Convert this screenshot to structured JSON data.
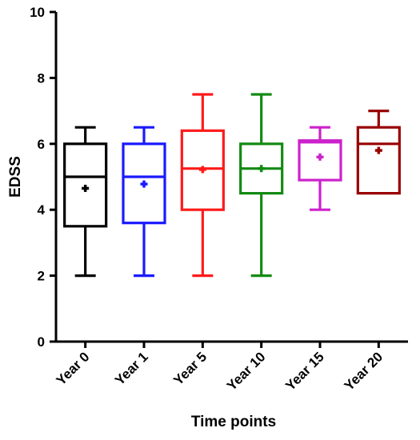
{
  "chart_data": {
    "type": "box",
    "title": "",
    "xlabel": "Time points",
    "ylabel": "EDSS",
    "ylim": [
      0,
      10
    ],
    "yticks": [
      0,
      2,
      4,
      6,
      8,
      10
    ],
    "grid": false,
    "categories": [
      "Year 0",
      "Year 1",
      "Year 5",
      "Year 10",
      "Year 15",
      "Year 20"
    ],
    "boxes": [
      {
        "category": "Year 0",
        "min": 2,
        "q1": 3.5,
        "median": 5,
        "q3": 6,
        "max": 6.5,
        "mean": 4.65,
        "color": "#000000"
      },
      {
        "category": "Year 1",
        "min": 2,
        "q1": 3.6,
        "median": 5,
        "q3": 6,
        "max": 6.5,
        "mean": 4.78,
        "color": "#1a1aff"
      },
      {
        "category": "Year 5",
        "min": 2,
        "q1": 4,
        "median": 5.25,
        "q3": 6.4,
        "max": 7.5,
        "mean": 5.22,
        "color": "#ff1a1a"
      },
      {
        "category": "Year 10",
        "min": 2,
        "q1": 4.5,
        "median": 5.25,
        "q3": 6,
        "max": 7.5,
        "mean": 5.25,
        "color": "#138a13"
      },
      {
        "category": "Year 15",
        "min": 4,
        "q1": 4.9,
        "median": 6.05,
        "q3": 6.1,
        "max": 6.5,
        "mean": 5.6,
        "color": "#cc22cc"
      },
      {
        "category": "Year 20",
        "min": 4.5,
        "q1": 4.5,
        "median": 6,
        "q3": 6.5,
        "max": 7,
        "mean": 5.8,
        "color": "#990000"
      }
    ]
  }
}
